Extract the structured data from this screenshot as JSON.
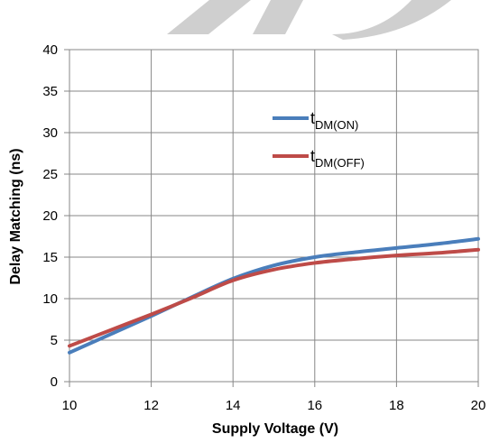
{
  "chart_data": {
    "type": "line",
    "xlabel": "Supply Voltage (V)",
    "ylabel": "Delay Matching (ns)",
    "xlim": [
      10,
      20
    ],
    "ylim": [
      0,
      40
    ],
    "x_ticks": [
      "10",
      "12",
      "14",
      "16",
      "18",
      "20"
    ],
    "y_ticks": [
      "0",
      "5",
      "10",
      "15",
      "20",
      "25",
      "30",
      "35",
      "40"
    ],
    "grid": true,
    "legend_position": "top-right",
    "series": [
      {
        "name_main": "t",
        "name_sub": "DM(ON)",
        "color": "#4a7ebb",
        "x": [
          10,
          11,
          12,
          13,
          14,
          15,
          16,
          17,
          18,
          19,
          20
        ],
        "y": [
          3.5,
          5.7,
          7.9,
          10.2,
          12.4,
          14.0,
          15.0,
          15.6,
          16.1,
          16.6,
          17.2
        ]
      },
      {
        "name_main": "t",
        "name_sub": "DM(OFF)",
        "color": "#be4b48",
        "x": [
          10,
          11,
          12,
          13,
          14,
          15,
          16,
          17,
          18,
          19,
          20
        ],
        "y": [
          4.3,
          6.2,
          8.1,
          10.1,
          12.2,
          13.5,
          14.3,
          14.8,
          15.2,
          15.5,
          15.9
        ]
      }
    ]
  }
}
